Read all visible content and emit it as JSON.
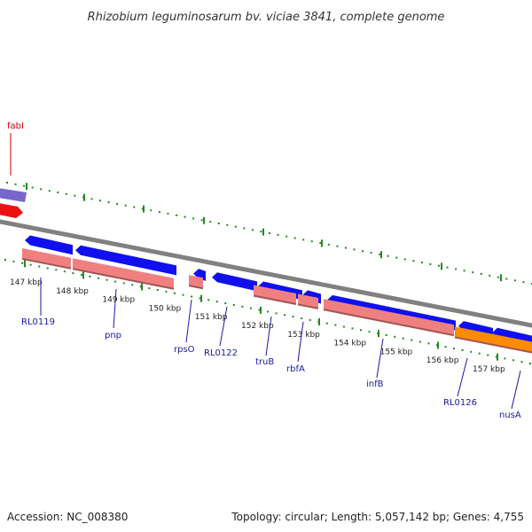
{
  "title": "Rhizobium leguminosarum bv. viciae 3841, complete genome",
  "footer": {
    "accession": "Accession: NC_008380",
    "summary": "Topology: circular; Length: 5,057,142 bp; Genes: 4,755"
  },
  "colors": {
    "forward_cds": "#1010ee",
    "gene_track": "#f08080",
    "highlight": "#ff8c00",
    "selected": "#ee1111",
    "upper_band": "#7766cc",
    "backbone": "#808080",
    "ticks": "#228822",
    "label_red": "#cc0000",
    "label_blue": "#1a1a99"
  },
  "kbp_labels": [
    {
      "kbp": 147,
      "text": "147 kbp"
    },
    {
      "kbp": 148,
      "text": "148 kbp"
    },
    {
      "kbp": 149,
      "text": "149 kbp"
    },
    {
      "kbp": 150,
      "text": "150 kbp"
    },
    {
      "kbp": 151,
      "text": "151 kbp"
    },
    {
      "kbp": 152,
      "text": "152 kbp"
    },
    {
      "kbp": 153,
      "text": "153 kbp"
    },
    {
      "kbp": 154,
      "text": "154 kbp"
    },
    {
      "kbp": 155,
      "text": "155 kbp"
    },
    {
      "kbp": 156,
      "text": "156 kbp"
    },
    {
      "kbp": 157,
      "text": "157 kbp"
    }
  ],
  "gene_labels": [
    {
      "name": "fabI",
      "color": "red"
    },
    {
      "name": "RL0119",
      "color": "blue"
    },
    {
      "name": "pnp",
      "color": "blue"
    },
    {
      "name": "rpsO",
      "color": "blue"
    },
    {
      "name": "RL0122",
      "color": "blue"
    },
    {
      "name": "truB",
      "color": "blue"
    },
    {
      "name": "rbfA",
      "color": "blue"
    },
    {
      "name": "infB",
      "color": "blue"
    },
    {
      "name": "RL0126",
      "color": "blue"
    },
    {
      "name": "nusA",
      "color": "blue"
    }
  ]
}
